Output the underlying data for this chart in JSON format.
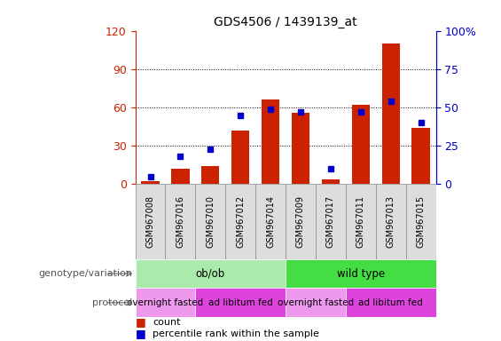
{
  "title": "GDS4506 / 1439139_at",
  "samples": [
    "GSM967008",
    "GSM967016",
    "GSM967010",
    "GSM967012",
    "GSM967014",
    "GSM967009",
    "GSM967017",
    "GSM967011",
    "GSM967013",
    "GSM967015"
  ],
  "count_values": [
    2,
    12,
    14,
    42,
    66,
    56,
    4,
    62,
    110,
    44
  ],
  "percentile_values": [
    5,
    18,
    23,
    45,
    49,
    47,
    10,
    47,
    54,
    40
  ],
  "bar_color": "#cc2200",
  "dot_color": "#0000cc",
  "left_ylim": [
    0,
    120
  ],
  "right_ylim": [
    0,
    100
  ],
  "left_yticks": [
    0,
    30,
    60,
    90,
    120
  ],
  "right_yticks": [
    0,
    25,
    50,
    75,
    100
  ],
  "right_yticklabels": [
    "0",
    "25",
    "50",
    "75",
    "100%"
  ],
  "left_ycolor": "#cc2200",
  "right_ycolor": "#0000cc",
  "genotype_groups": [
    {
      "label": "ob/ob",
      "start": 0,
      "end": 5,
      "color": "#aaeaaa"
    },
    {
      "label": "wild type",
      "start": 5,
      "end": 10,
      "color": "#44dd44"
    }
  ],
  "protocol_groups": [
    {
      "label": "overnight fasted",
      "start": 0,
      "end": 2,
      "color": "#ee99ee"
    },
    {
      "label": "ad libitum fed",
      "start": 2,
      "end": 5,
      "color": "#dd44dd"
    },
    {
      "label": "overnight fasted",
      "start": 5,
      "end": 7,
      "color": "#ee99ee"
    },
    {
      "label": "ad libitum fed",
      "start": 7,
      "end": 10,
      "color": "#dd44dd"
    }
  ],
  "genotype_label": "genotype/variation",
  "protocol_label": "protocol",
  "legend_count": "count",
  "legend_percentile": "percentile rank within the sample",
  "background_color": "#ffffff",
  "plot_bg_color": "#ffffff",
  "grid_color": "#000000",
  "sample_label_bg": "#dddddd",
  "sample_label_border": "#888888"
}
